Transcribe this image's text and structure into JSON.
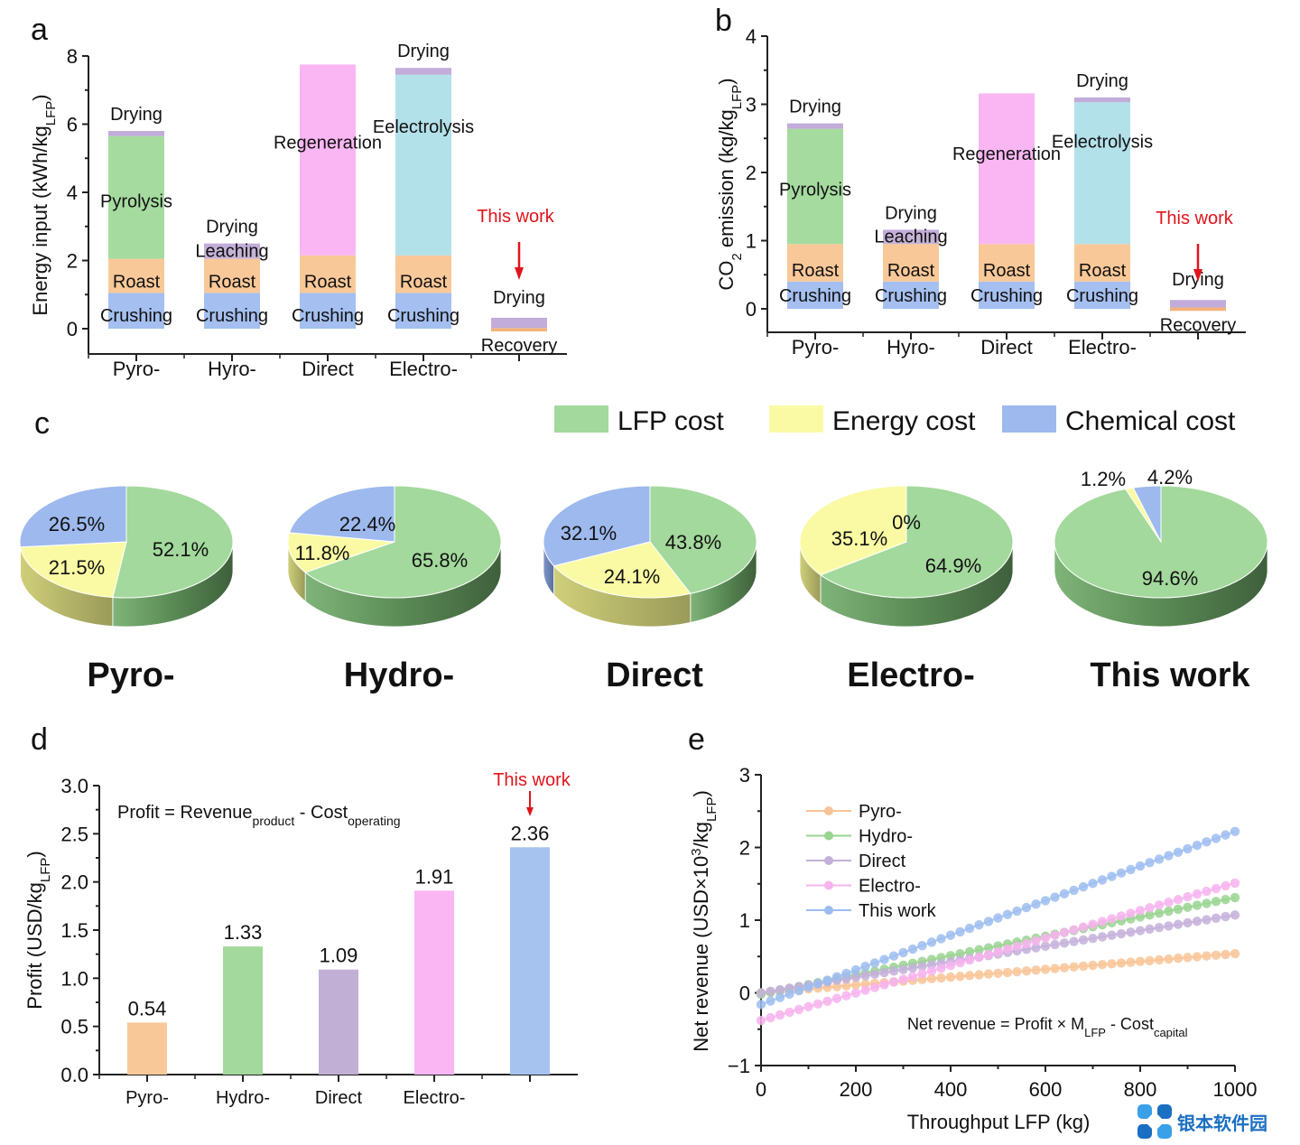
{
  "panels": {
    "a": "a",
    "b": "b",
    "c": "c",
    "d": "d",
    "e": "e"
  },
  "colors": {
    "crushing": "#a4bff0",
    "roast": "#f9c898",
    "pyrolysis": "#a6dba0",
    "leaching": "#c5b3d6",
    "regeneration": "#f9b6f2",
    "electrolysis": "#b3e1ea",
    "drying": "#c2acd9",
    "recovery": "#f3b27a",
    "lfp": "#a3d99c",
    "energy": "#fafaa4",
    "chemical": "#9db9ee",
    "pyro_line": "#f8c496",
    "hydro_line": "#99d490",
    "direct_line": "#c4b0db",
    "electro_line": "#f7b3ee",
    "thiswork_line": "#9dbdf0",
    "accent_red": "#e0141c"
  },
  "chart_data": [
    {
      "id": "a",
      "type": "bar",
      "stacked": true,
      "title": "",
      "ylabel": "Energy input (kWh/kg",
      "ylabel_sub": "LFP",
      "ylabel_end": ")",
      "ylim": [
        -0.6,
        8
      ],
      "yticks": [
        0,
        2,
        4,
        6,
        8
      ],
      "categories": [
        "Pyro-",
        "Hyro-",
        "Direct",
        "Electro-",
        ""
      ],
      "annotation": "This work",
      "bars": [
        {
          "segments": [
            {
              "name": "Crushing",
              "from": 0,
              "to": 1.05
            },
            {
              "name": "Roast",
              "from": 1.05,
              "to": 2.05
            },
            {
              "name": "Pyrolysis",
              "from": 2.05,
              "to": 5.65
            },
            {
              "name": "Drying",
              "from": 5.65,
              "to": 5.8
            }
          ]
        },
        {
          "segments": [
            {
              "name": "Crushing",
              "from": 0,
              "to": 1.05
            },
            {
              "name": "Roast",
              "from": 1.05,
              "to": 2.05
            },
            {
              "name": "Leaching",
              "from": 2.05,
              "to": 2.35
            },
            {
              "name": "Drying",
              "from": 2.35,
              "to": 2.5
            }
          ]
        },
        {
          "segments": [
            {
              "name": "Crushing",
              "from": 0,
              "to": 1.05
            },
            {
              "name": "Roast",
              "from": 1.05,
              "to": 2.15
            },
            {
              "name": "Regeneration",
              "from": 2.15,
              "to": 7.75
            }
          ]
        },
        {
          "segments": [
            {
              "name": "Crushing",
              "from": 0,
              "to": 1.05
            },
            {
              "name": "Roast",
              "from": 1.05,
              "to": 2.15
            },
            {
              "name": "Eelectrolysis",
              "from": 2.15,
              "to": 7.45
            },
            {
              "name": "Drying",
              "from": 7.45,
              "to": 7.65
            }
          ]
        },
        {
          "segments": [
            {
              "name": "Recovery",
              "from": -0.08,
              "to": 0.02
            },
            {
              "name": "Drying",
              "from": 0.02,
              "to": 0.32
            }
          ]
        }
      ]
    },
    {
      "id": "b",
      "type": "bar",
      "stacked": true,
      "title": "",
      "ylabel": "CO",
      "ylabel_sub": "2",
      "ylabel_end": " emission (kg/kg",
      "ylabel_sub2": "LFP",
      "ylabel_end2": ")",
      "ylim": [
        -0.25,
        4
      ],
      "yticks": [
        0,
        1,
        2,
        3,
        4
      ],
      "categories": [
        "Pyro-",
        "Hyro-",
        "Direct",
        "Electro-",
        ""
      ],
      "annotation": "This work",
      "bars": [
        {
          "segments": [
            {
              "name": "Crushing",
              "from": 0,
              "to": 0.4
            },
            {
              "name": "Roast",
              "from": 0.4,
              "to": 0.95
            },
            {
              "name": "Pyrolysis",
              "from": 0.95,
              "to": 2.64
            },
            {
              "name": "Drying",
              "from": 2.64,
              "to": 2.72
            }
          ]
        },
        {
          "segments": [
            {
              "name": "Crushing",
              "from": 0,
              "to": 0.4
            },
            {
              "name": "Roast",
              "from": 0.4,
              "to": 0.95
            },
            {
              "name": "Leaching",
              "from": 0.95,
              "to": 1.08
            },
            {
              "name": "Drying",
              "from": 1.08,
              "to": 1.16
            }
          ]
        },
        {
          "segments": [
            {
              "name": "Crushing",
              "from": 0,
              "to": 0.4
            },
            {
              "name": "Roast",
              "from": 0.4,
              "to": 0.95
            },
            {
              "name": "Regeneration",
              "from": 0.95,
              "to": 3.16
            }
          ]
        },
        {
          "segments": [
            {
              "name": "Crushing",
              "from": 0,
              "to": 0.4
            },
            {
              "name": "Roast",
              "from": 0.4,
              "to": 0.95
            },
            {
              "name": "Eelectrolysis",
              "from": 0.95,
              "to": 3.03
            },
            {
              "name": "Drying",
              "from": 3.03,
              "to": 3.1
            }
          ]
        },
        {
          "segments": [
            {
              "name": "Recovery",
              "from": -0.03,
              "to": 0.02
            },
            {
              "name": "Drying",
              "from": 0.02,
              "to": 0.13
            }
          ]
        }
      ]
    },
    {
      "id": "c",
      "type": "pie",
      "legend": [
        "LFP cost",
        "Energy cost",
        "Chemical cost"
      ],
      "legend_placement": "top-right",
      "pies": [
        {
          "title": "Pyro-",
          "title_red": false,
          "slices": [
            {
              "name": "LFP cost",
              "value": 52.1,
              "label": "52.1%"
            },
            {
              "name": "Energy cost",
              "value": 21.5,
              "label": "21.5%"
            },
            {
              "name": "Chemical cost",
              "value": 26.5,
              "label": "26.5%"
            }
          ]
        },
        {
          "title": "Hydro-",
          "title_red": false,
          "slices": [
            {
              "name": "LFP cost",
              "value": 65.8,
              "label": "65.8%"
            },
            {
              "name": "Energy cost",
              "value": 11.8,
              "label": "11.8%"
            },
            {
              "name": "Chemical cost",
              "value": 22.4,
              "label": "22.4%"
            }
          ]
        },
        {
          "title": "Direct",
          "title_red": false,
          "slices": [
            {
              "name": "LFP cost",
              "value": 43.8,
              "label": "43.8%"
            },
            {
              "name": "Energy cost",
              "value": 24.1,
              "label": "24.1%"
            },
            {
              "name": "Chemical cost",
              "value": 32.1,
              "label": "32.1%"
            }
          ]
        },
        {
          "title": "Electro-",
          "title_red": false,
          "slices": [
            {
              "name": "LFP cost",
              "value": 64.9,
              "label": "64.9%"
            },
            {
              "name": "Energy cost",
              "value": 35.1,
              "label": "35.1%"
            },
            {
              "name": "Chemical cost",
              "value": 0,
              "label": "0%"
            }
          ]
        },
        {
          "title": "This work",
          "title_red": true,
          "slices": [
            {
              "name": "LFP cost",
              "value": 94.6,
              "label": "94.6%"
            },
            {
              "name": "Energy cost",
              "value": 1.2,
              "label": "1.2%"
            },
            {
              "name": "Chemical cost",
              "value": 4.2,
              "label": "4.2%"
            }
          ]
        }
      ]
    },
    {
      "id": "d",
      "type": "bar",
      "title": "",
      "ylabel": "Profit (USD/kg",
      "ylabel_sub": "LFP",
      "ylabel_end": ")",
      "ylim": [
        0,
        3.0
      ],
      "yticks": [
        "0.0",
        "0.5",
        "1.0",
        "1.5",
        "2.0",
        "2.5",
        "3.0"
      ],
      "categories": [
        "Pyro-",
        "Hydro-",
        "Direct",
        "Electro-",
        ""
      ],
      "values": [
        0.54,
        1.33,
        1.09,
        1.91,
        2.36
      ],
      "value_labels": [
        "0.54",
        "1.33",
        "1.09",
        "1.91",
        "2.36"
      ],
      "annotation": "This work",
      "formula": {
        "main": "Profit = Revenue",
        "sub1": "product",
        "mid": " - Cost",
        "sub2": "operating"
      }
    },
    {
      "id": "e",
      "type": "line",
      "xlabel": "Throughput LFP (kg)",
      "ylabel": "Net revenue (USD×10",
      "ylabel_sup": "3",
      "ylabel_mid": "/kg",
      "ylabel_sub": "LFP",
      "ylabel_end": ")",
      "xlim": [
        0,
        1000
      ],
      "ylim": [
        -1,
        3
      ],
      "xticks": [
        0,
        200,
        400,
        600,
        800,
        1000
      ],
      "yticks": [
        -1,
        0,
        1,
        2,
        3
      ],
      "ytick_labels": [
        "−1",
        "0",
        "1",
        "2",
        "3"
      ],
      "legend_placement": "top-left",
      "formula": {
        "main": "Net revenue = Profit × M",
        "sub1": "LFP",
        "mid": " - Cost",
        "sub2": "capital"
      },
      "series": [
        {
          "name": "Pyro-",
          "x": [
            0,
            1000
          ],
          "y": [
            0.0,
            0.54
          ]
        },
        {
          "name": "Hydro-",
          "x": [
            0,
            1000
          ],
          "y": [
            -0.02,
            1.31
          ]
        },
        {
          "name": "Direct",
          "x": [
            0,
            1000
          ],
          "y": [
            0.0,
            1.07
          ]
        },
        {
          "name": "Electro-",
          "x": [
            0,
            1000
          ],
          "y": [
            -0.38,
            1.51
          ]
        },
        {
          "name": "This work",
          "x": [
            0,
            1000
          ],
          "y": [
            -0.16,
            2.22
          ]
        }
      ]
    }
  ],
  "watermark": "银本软件园"
}
